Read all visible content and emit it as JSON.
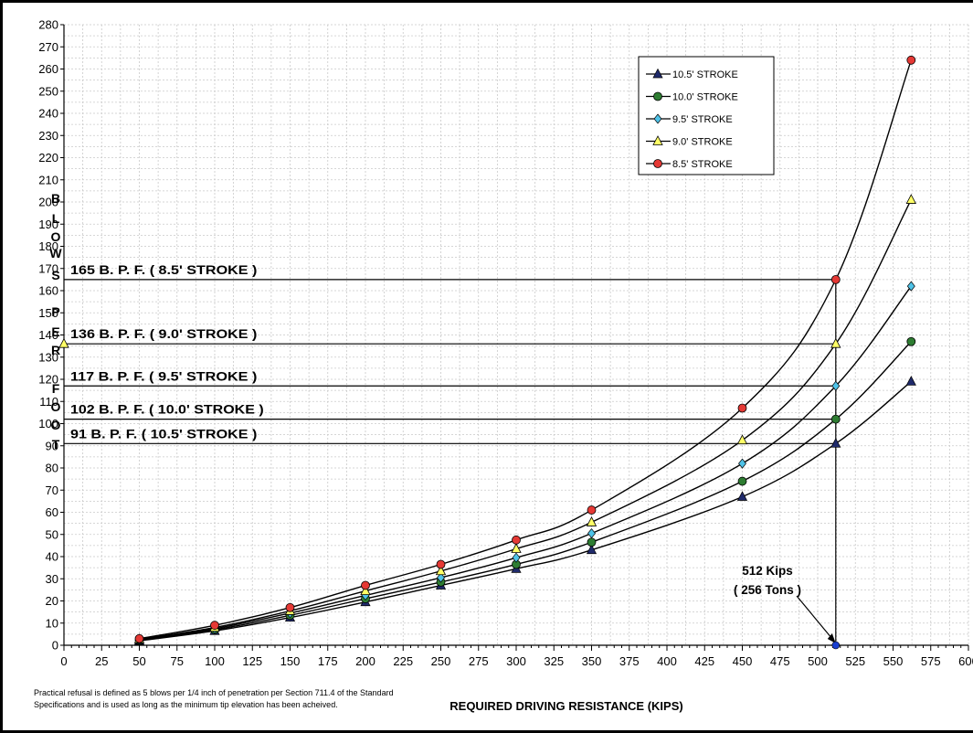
{
  "footnote": "Practical refusal is defined as 5 blows per 1/4 inch of penetration per Section 711.4 of the Standard Specifications and is used as long as the minimum tip elevation has been acheived.",
  "chart_data": {
    "type": "line",
    "title": "",
    "xlabel": "REQUIRED DRIVING RESISTANCE (KIPS)",
    "ylabel": "BLOWS PER FOOT",
    "xlim": [
      0,
      600
    ],
    "ylim": [
      0,
      280
    ],
    "xticks": [
      0,
      25,
      50,
      75,
      100,
      125,
      150,
      175,
      200,
      225,
      250,
      275,
      300,
      325,
      350,
      375,
      400,
      425,
      450,
      475,
      500,
      525,
      550,
      575,
      600
    ],
    "yticks": [
      0,
      10,
      20,
      30,
      40,
      50,
      60,
      70,
      80,
      90,
      100,
      110,
      120,
      130,
      140,
      150,
      160,
      170,
      180,
      190,
      200,
      210,
      220,
      230,
      240,
      250,
      260,
      270,
      280
    ],
    "grid": true,
    "legend_position": "top-right",
    "series": [
      {
        "name": "10.5' STROKE",
        "marker": "triangle",
        "color": "#1f2a6b",
        "x": [
          50,
          100,
          150,
          200,
          250,
          300,
          350,
          450,
          512,
          562
        ],
        "y": [
          2,
          6.5,
          12.5,
          19.5,
          27,
          34.5,
          43,
          67,
          91,
          119
        ]
      },
      {
        "name": "10.0' STROKE",
        "marker": "circle",
        "color": "#2e7d32",
        "x": [
          50,
          100,
          150,
          200,
          250,
          300,
          350,
          450,
          512,
          562
        ],
        "y": [
          2.2,
          7,
          13.5,
          21,
          28.5,
          36.5,
          46.5,
          74,
          102,
          137
        ]
      },
      {
        "name": "9.5' STROKE",
        "marker": "diamond",
        "color": "#4fc3e8",
        "x": [
          50,
          100,
          150,
          200,
          250,
          300,
          350,
          450,
          512,
          562
        ],
        "y": [
          2.5,
          7.5,
          14.5,
          22.5,
          30.5,
          39.5,
          50.5,
          82,
          117,
          162
        ]
      },
      {
        "name": "9.0' STROKE",
        "marker": "triangle-open",
        "color": "#ffff66",
        "x": [
          50,
          100,
          150,
          200,
          250,
          300,
          350,
          450,
          512,
          562
        ],
        "y": [
          2.7,
          8,
          15.5,
          24.5,
          33.5,
          43.5,
          55.5,
          92.5,
          136,
          201
        ]
      },
      {
        "name": "8.5' STROKE",
        "marker": "circle",
        "color": "#e53935",
        "x": [
          50,
          100,
          150,
          200,
          250,
          300,
          350,
          450,
          512,
          562
        ],
        "y": [
          3,
          9,
          17,
          27,
          36.5,
          47.5,
          61,
          107,
          165,
          264
        ]
      }
    ],
    "reference_lines": [
      {
        "y": 165,
        "label": "165 B. P. F. ( 8.5' STROKE )"
      },
      {
        "y": 136,
        "label": "136 B. P. F. ( 9.0' STROKE )"
      },
      {
        "y": 117,
        "label": "117 B. P. F. ( 9.5' STROKE )"
      },
      {
        "y": 102,
        "label": "102 B. P. F. ( 10.0' STROKE )"
      },
      {
        "y": 91,
        "label": "91 B. P. F. ( 10.5' STROKE )"
      }
    ],
    "vertical_reference": {
      "x": 512,
      "label_line1": "512 Kips",
      "label_line2": "( 256 Tons )"
    },
    "ylabel_letters": [
      "B",
      "L",
      "O",
      "W",
      "S",
      "P",
      "E",
      "R",
      "F",
      "O",
      "O",
      "T"
    ]
  }
}
